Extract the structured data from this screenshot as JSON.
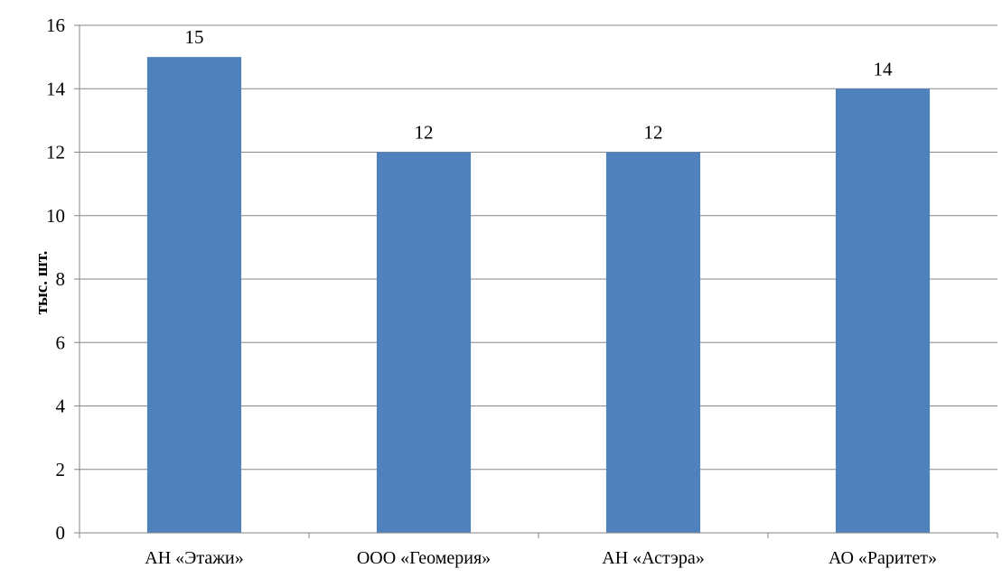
{
  "chart_data": {
    "type": "bar",
    "title": "",
    "xlabel": "",
    "ylabel": "тыс. шт.",
    "categories": [
      "АН «Этажи»",
      "ООО «Геомерия»",
      "АН «Астэра»",
      "АО «Раритет»"
    ],
    "values": [
      15,
      12,
      12,
      14
    ],
    "data_labels": [
      "15",
      "12",
      "12",
      "14"
    ],
    "ylim": [
      0,
      16
    ],
    "yticks": [
      0,
      2,
      4,
      6,
      8,
      10,
      12,
      14,
      16
    ],
    "ytick_labels": [
      "0",
      "2",
      "4",
      "6",
      "8",
      "10",
      "12",
      "14",
      "16"
    ],
    "grid": "horizontal",
    "legend": "none",
    "colors": {
      "bar": "#4f81bd",
      "grid": "#868686",
      "axis": "#868686",
      "text": "#000000"
    }
  }
}
